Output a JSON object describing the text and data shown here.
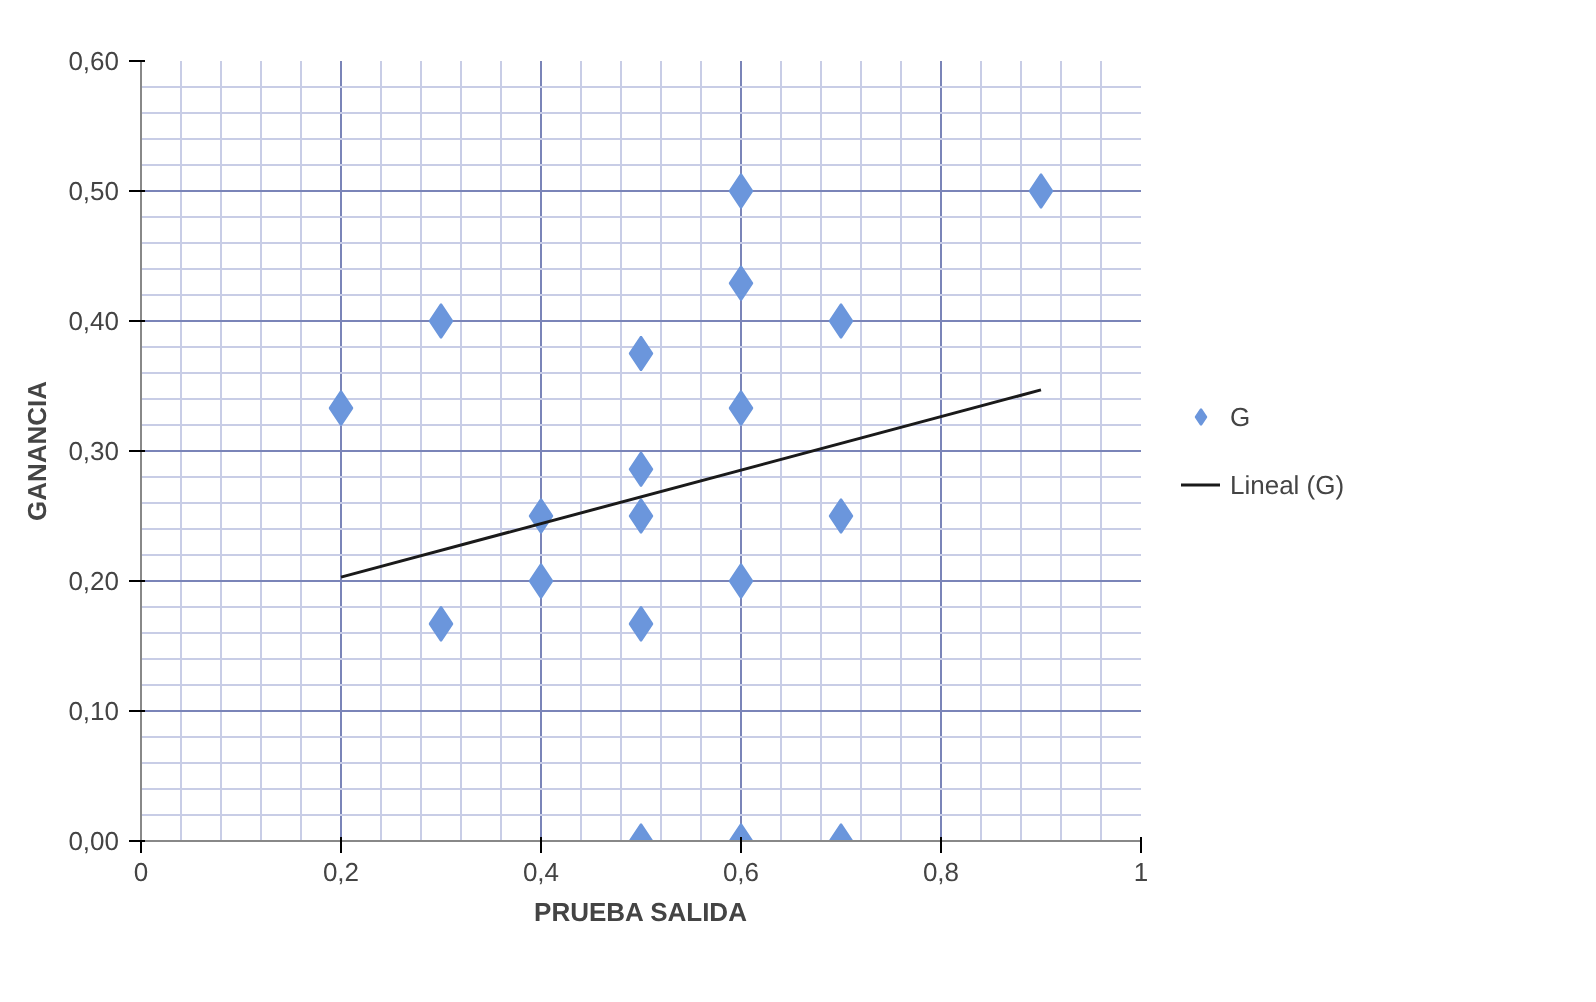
{
  "chart_data": {
    "type": "scatter",
    "xlabel": "PRUEBA SALIDA",
    "ylabel": "GANANCIA",
    "series": [
      {
        "name": "G",
        "color": "#6b96dc",
        "marker": "diamond",
        "x": [
          0.2,
          0.3,
          0.3,
          0.4,
          0.4,
          0.5,
          0.5,
          0.5,
          0.5,
          0.5,
          0.6,
          0.6,
          0.6,
          0.6,
          0.6,
          0.7,
          0.7,
          0.7,
          0.9
        ],
        "values": [
          0.333,
          0.4,
          0.167,
          0.25,
          0.2,
          0.375,
          0.286,
          0.25,
          0.167,
          0.0,
          0.5,
          0.429,
          0.333,
          0.2,
          0.0,
          0.4,
          0.25,
          0.0,
          0.5
        ]
      },
      {
        "name": "Lineal (G)",
        "type": "line",
        "color": "#1a1a1a",
        "marker": "none",
        "line_style": "solid",
        "x": [
          0.2,
          0.9
        ],
        "values": [
          0.203,
          0.347
        ]
      }
    ],
    "xlim": [
      0,
      1
    ],
    "ylim": [
      0,
      0.6
    ],
    "xticks": [
      0,
      {
        "value": 0.2,
        "label": "0,2"
      },
      {
        "value": 0.4,
        "label": "0,4"
      },
      {
        "value": 0.6,
        "label": "0,6"
      },
      {
        "value": 0.8,
        "label": "0,8"
      },
      1
    ],
    "yticks": [
      {
        "value": 0,
        "label": "0,00"
      },
      {
        "value": 0.1,
        "label": "0,10"
      },
      {
        "value": 0.2,
        "label": "0,20"
      },
      {
        "value": 0.3,
        "label": "0,30"
      },
      {
        "value": 0.4,
        "label": "0,40"
      },
      {
        "value": 0.5,
        "label": "0,50"
      },
      {
        "value": 0.6,
        "label": "0,60"
      }
    ],
    "grid": true,
    "legend": "right"
  }
}
